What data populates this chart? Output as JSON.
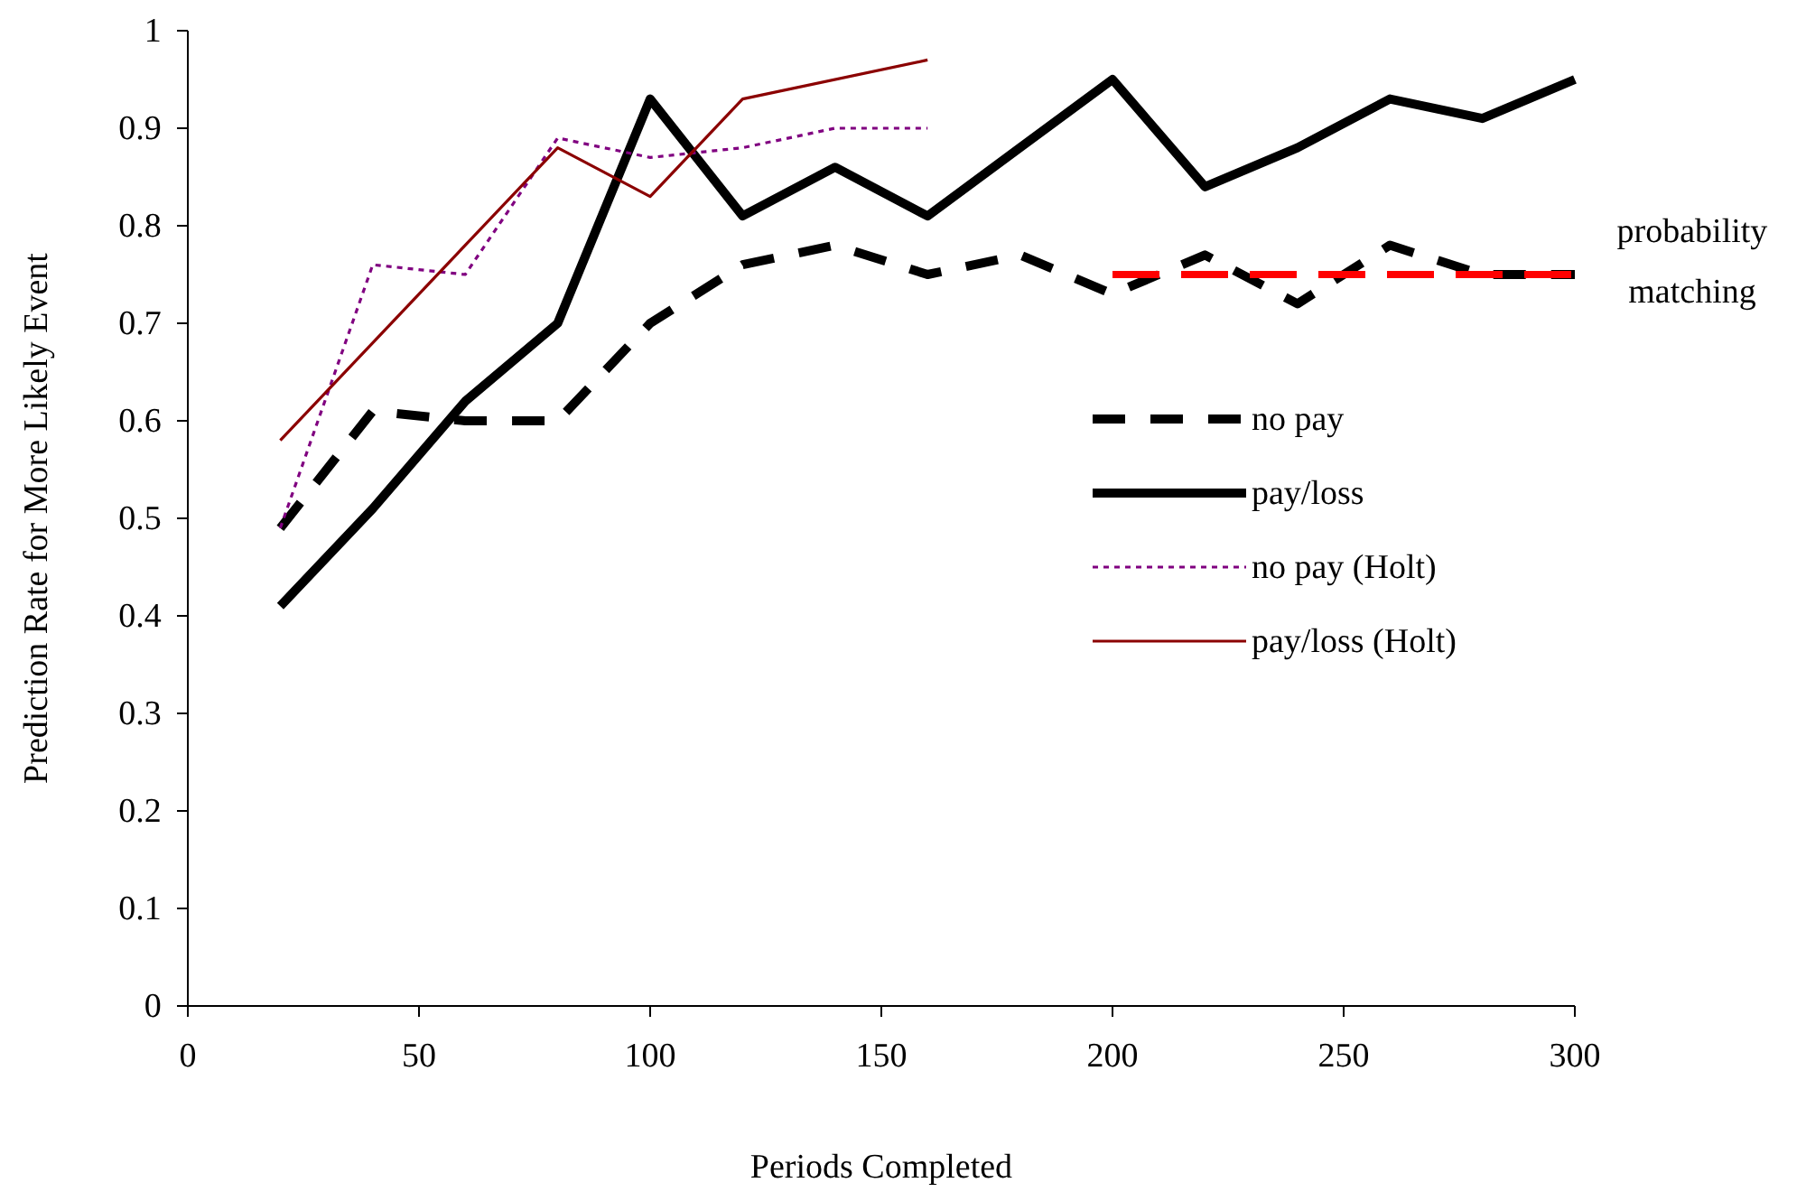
{
  "chart_data": {
    "type": "line",
    "xlabel": "Periods Completed",
    "ylabel": "Prediction Rate for More Likely Event",
    "xlim": [
      0,
      300
    ],
    "xticks": [
      0,
      50,
      100,
      150,
      200,
      250,
      300
    ],
    "ylim": [
      0,
      1
    ],
    "yticks": [
      0,
      0.1,
      0.2,
      0.3,
      0.4,
      0.5,
      0.6,
      0.7,
      0.8,
      0.9,
      1
    ],
    "grid": false,
    "legend": "right",
    "marker": "none",
    "series": [
      {
        "name": "no pay",
        "color": "#000000",
        "line_style": "dashed",
        "x": [
          20,
          40,
          60,
          80,
          100,
          120,
          140,
          160,
          180,
          200,
          220,
          240,
          260,
          280,
          300
        ],
        "values": [
          0.49,
          0.61,
          0.6,
          0.6,
          0.7,
          0.76,
          0.78,
          0.75,
          0.77,
          0.73,
          0.77,
          0.72,
          0.78,
          0.75,
          0.75
        ]
      },
      {
        "name": "pay/loss",
        "color": "#000000",
        "line_style": "solid",
        "x": [
          20,
          40,
          60,
          80,
          100,
          120,
          140,
          160,
          180,
          200,
          220,
          240,
          260,
          280,
          300
        ],
        "values": [
          0.41,
          0.51,
          0.62,
          0.7,
          0.93,
          0.81,
          0.86,
          0.81,
          0.88,
          0.95,
          0.84,
          0.88,
          0.93,
          0.91,
          0.95
        ]
      },
      {
        "name": "no pay (Holt)",
        "color": "#800080",
        "line_style": "dotted",
        "x": [
          20,
          40,
          60,
          80,
          100,
          120,
          140,
          160
        ],
        "values": [
          0.49,
          0.76,
          0.75,
          0.89,
          0.87,
          0.88,
          0.9,
          0.9
        ]
      },
      {
        "name": "pay/loss (Holt)",
        "color": "#8b0000",
        "line_style": "solid",
        "x": [
          20,
          80,
          100,
          120,
          160
        ],
        "values": [
          0.58,
          0.88,
          0.83,
          0.93,
          0.97
        ]
      },
      {
        "name": "probability matching",
        "color": "#ff0000",
        "line_style": "dashed",
        "x": [
          200,
          300
        ],
        "values": [
          0.75,
          0.75
        ]
      }
    ]
  }
}
